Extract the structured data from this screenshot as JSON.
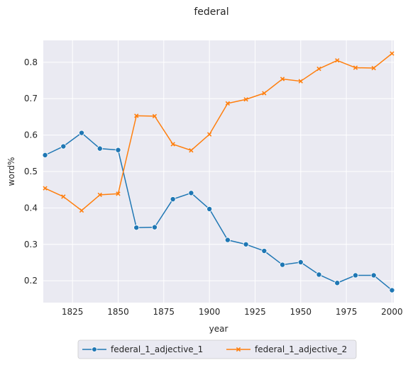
{
  "chart_data": {
    "type": "line",
    "title": "federal",
    "xlabel": "year",
    "ylabel": "word%",
    "xlim": [
      1809,
      2001
    ],
    "ylim": [
      0.14,
      0.86
    ],
    "xticks": [
      1825,
      1850,
      1875,
      1900,
      1925,
      1950,
      1975,
      2000
    ],
    "yticks": [
      0.2,
      0.3,
      0.4,
      0.5,
      0.6,
      0.7,
      0.8
    ],
    "grid": true,
    "legend_placement": "bottom-center",
    "x": [
      1810,
      1820,
      1830,
      1840,
      1850,
      1860,
      1870,
      1880,
      1890,
      1900,
      1910,
      1920,
      1930,
      1940,
      1950,
      1960,
      1970,
      1980,
      1990,
      2000
    ],
    "series": [
      {
        "name": "federal_1_adjective_1",
        "color": "#1f77b4",
        "marker": "circle",
        "values": [
          0.545,
          0.569,
          0.606,
          0.563,
          0.559,
          0.346,
          0.347,
          0.424,
          0.441,
          0.397,
          0.312,
          0.3,
          0.282,
          0.244,
          0.251,
          0.217,
          0.194,
          0.215,
          0.215,
          0.174
        ]
      },
      {
        "name": "federal_1_adjective_2",
        "color": "#ff7f0e",
        "marker": "x",
        "values": [
          0.454,
          0.431,
          0.393,
          0.436,
          0.439,
          0.653,
          0.652,
          0.575,
          0.558,
          0.602,
          0.687,
          0.698,
          0.715,
          0.754,
          0.748,
          0.782,
          0.805,
          0.785,
          0.784,
          0.824
        ]
      }
    ]
  }
}
